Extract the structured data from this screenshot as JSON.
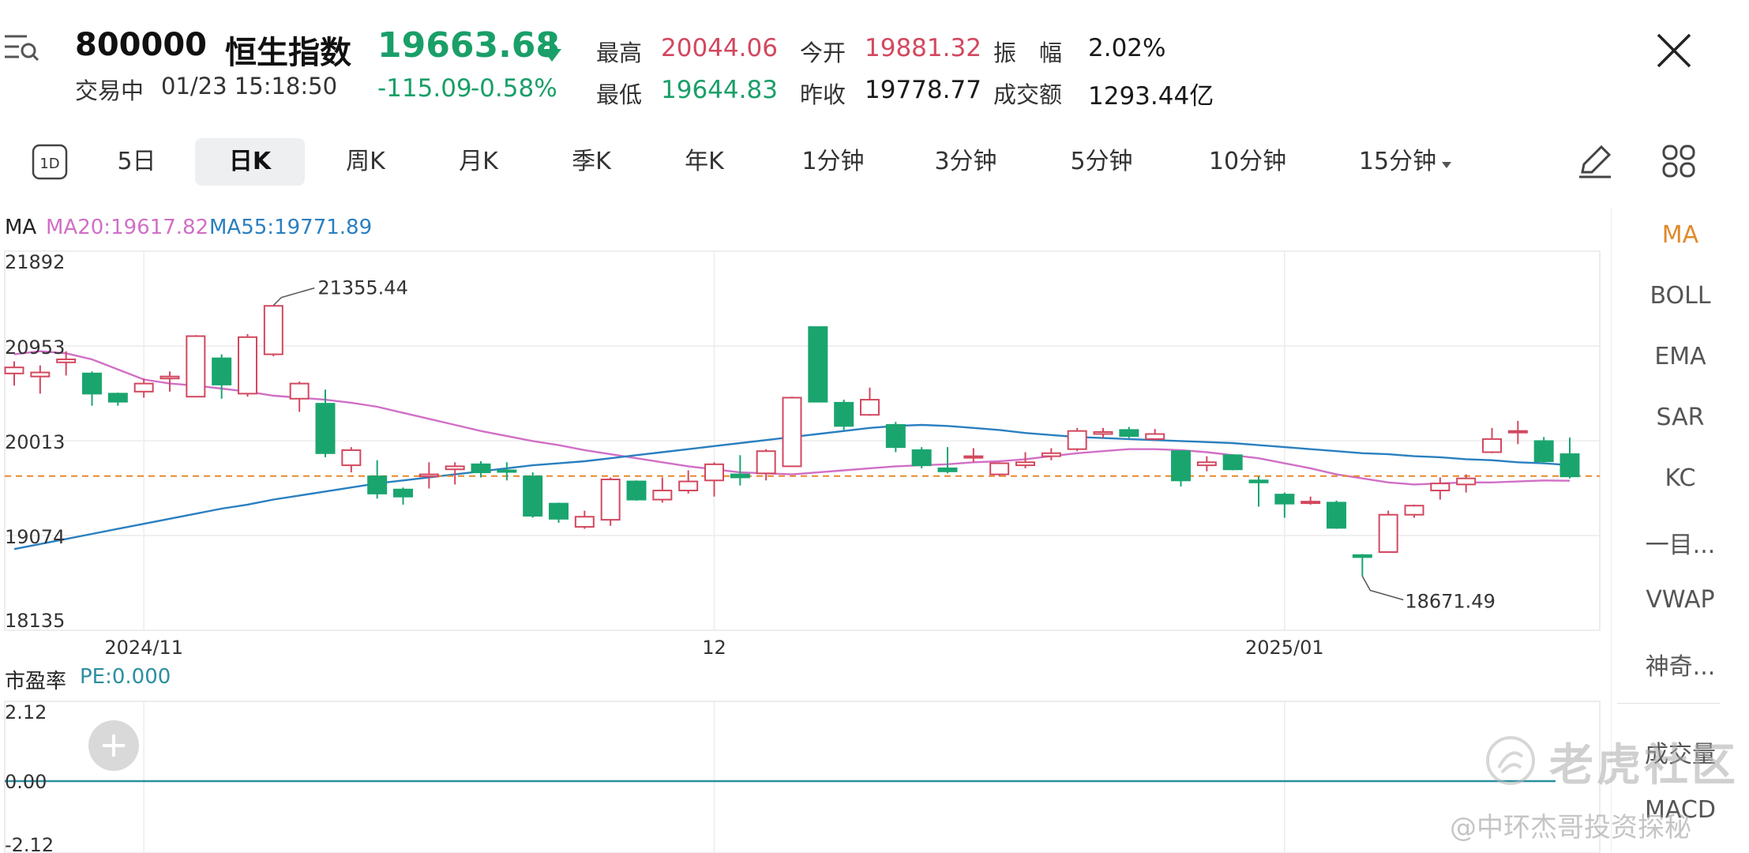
{
  "header": {
    "code": "800000",
    "name": "恒生指数",
    "price": "19663.68",
    "change": "-115.09",
    "change_pct": "-0.58%",
    "status": "交易中",
    "datetime": "01/23 15:18:50",
    "stats": [
      {
        "label": "最高",
        "value": "20044.06",
        "color": "#d2485f"
      },
      {
        "label": "今开",
        "value": "19881.32",
        "color": "#d2485f"
      },
      {
        "label": "振　幅",
        "value": "2.02%",
        "color": "#1a1a1a"
      },
      {
        "label": "最低",
        "value": "19644.83",
        "color": "#1a9f68"
      },
      {
        "label": "昨收",
        "value": "19778.77",
        "color": "#1a1a1a"
      },
      {
        "label": "成交额",
        "value": "1293.44亿",
        "color": "#1a1a1a"
      }
    ]
  },
  "toolbar": {
    "badge": "1D",
    "tabs": [
      "5日",
      "日K",
      "周K",
      "月K",
      "季K",
      "年K",
      "1分钟",
      "3分钟",
      "5分钟",
      "10分钟",
      "15分钟"
    ],
    "active_tab": "日K"
  },
  "right_panel": {
    "items": [
      "MA",
      "BOLL",
      "EMA",
      "SAR",
      "KC",
      "一目...",
      "VWAP",
      "神奇..."
    ],
    "lower_items": [
      "成交量",
      "MACD"
    ],
    "active": "MA"
  },
  "main_chart": {
    "ma_label": "MA",
    "ma20_label": "MA20:19617.82",
    "ma55_label": "MA55:19771.89",
    "ma20_color": "#d16fc6",
    "ma55_color": "#2a7fc0",
    "up_color": "#d2485f",
    "down_color": "#1aa56f",
    "y_ticks": [
      "21892",
      "20953",
      "20013",
      "19074",
      "18135"
    ],
    "x_ticks": [
      "2024/11",
      "12",
      "2025/01"
    ],
    "high_annotation": "21355.44",
    "low_annotation": "18671.49",
    "last_price_line": 19663.68
  },
  "chart_data": {
    "type": "candlestick",
    "ylim": [
      18135,
      21892
    ],
    "y_ticks": [
      21892,
      20953,
      20013,
      19074,
      18135
    ],
    "x_ticks": [
      "2024/11",
      "12",
      "2025/01"
    ],
    "candles": [
      [
        20680,
        20740,
        20560,
        20800
      ],
      [
        20650,
        20690,
        20480,
        20760
      ],
      [
        20790,
        20820,
        20660,
        20900
      ],
      [
        20680,
        20480,
        20360,
        20700
      ],
      [
        20480,
        20400,
        20360,
        20490
      ],
      [
        20500,
        20580,
        20440,
        20630
      ],
      [
        20630,
        20650,
        20500,
        20700
      ],
      [
        20450,
        21050,
        20450,
        21060
      ],
      [
        20830,
        20570,
        20430,
        20870
      ],
      [
        20480,
        21040,
        20450,
        21070
      ],
      [
        20870,
        21350,
        20850,
        21355
      ],
      [
        20430,
        20580,
        20300,
        20600
      ],
      [
        20380,
        19890,
        19850,
        20520
      ],
      [
        19770,
        19920,
        19700,
        19950
      ],
      [
        19660,
        19490,
        19440,
        19820
      ],
      [
        19530,
        19460,
        19380,
        19550
      ],
      [
        19660,
        19680,
        19540,
        19800
      ],
      [
        19730,
        19760,
        19580,
        19800
      ],
      [
        19780,
        19700,
        19650,
        19810
      ],
      [
        19720,
        19710,
        19620,
        19800
      ],
      [
        19660,
        19270,
        19250,
        19700
      ],
      [
        19390,
        19240,
        19200,
        19400
      ],
      [
        19160,
        19260,
        19140,
        19320
      ],
      [
        19230,
        19630,
        19170,
        19650
      ],
      [
        19610,
        19430,
        19420,
        19620
      ],
      [
        19430,
        19520,
        19400,
        19650
      ],
      [
        19520,
        19610,
        19490,
        19720
      ],
      [
        19620,
        19780,
        19460,
        19800
      ],
      [
        19680,
        19650,
        19570,
        19870
      ],
      [
        19690,
        19910,
        19620,
        19930
      ],
      [
        19760,
        20440,
        19760,
        20450
      ],
      [
        21140,
        20400,
        20400,
        21140
      ],
      [
        20390,
        20160,
        20120,
        20420
      ],
      [
        20270,
        20420,
        20260,
        20540
      ],
      [
        20170,
        19950,
        19900,
        20200
      ],
      [
        19920,
        19770,
        19740,
        19950
      ],
      [
        19740,
        19710,
        19690,
        19950
      ],
      [
        19850,
        19860,
        19800,
        19940
      ],
      [
        19680,
        19790,
        19660,
        19800
      ],
      [
        19770,
        19800,
        19740,
        19900
      ],
      [
        19860,
        19890,
        19820,
        19940
      ],
      [
        19930,
        20110,
        19910,
        20140
      ],
      [
        20080,
        20100,
        20040,
        20140
      ],
      [
        20120,
        20060,
        20040,
        20150
      ],
      [
        20030,
        20080,
        20010,
        20130
      ],
      [
        19910,
        19620,
        19560,
        19910
      ],
      [
        19770,
        19800,
        19710,
        19860
      ],
      [
        19870,
        19730,
        19720,
        19880
      ],
      [
        19620,
        19600,
        19360,
        19660
      ],
      [
        19480,
        19390,
        19250,
        19500
      ],
      [
        19400,
        19410,
        19380,
        19460
      ],
      [
        19400,
        19150,
        19140,
        19420
      ],
      [
        18880,
        18860,
        18671,
        18890
      ],
      [
        18910,
        19280,
        18910,
        19320
      ],
      [
        19280,
        19370,
        19250,
        19380
      ],
      [
        19520,
        19590,
        19430,
        19650
      ],
      [
        19580,
        19640,
        19500,
        19680
      ],
      [
        19900,
        20030,
        19890,
        20140
      ],
      [
        20100,
        20110,
        19980,
        20210
      ],
      [
        20010,
        19810,
        19780,
        20050
      ],
      [
        19880,
        19660,
        19640,
        20044
      ]
    ],
    "ma20": [
      20870,
      20900,
      20880,
      20820,
      20720,
      20620,
      20580,
      20560,
      20530,
      20500,
      20460,
      20440,
      20420,
      20390,
      20350,
      20290,
      20230,
      20170,
      20110,
      20060,
      20010,
      19970,
      19920,
      19880,
      19840,
      19800,
      19760,
      19730,
      19700,
      19690,
      19680,
      19700,
      19720,
      19740,
      19760,
      19770,
      19780,
      19800,
      19810,
      19830,
      19860,
      19890,
      19910,
      19930,
      19930,
      19920,
      19900,
      19870,
      19840,
      19790,
      19740,
      19680,
      19640,
      19600,
      19580,
      19590,
      19600,
      19600,
      19610,
      19620,
      19617
    ],
    "ma55": [
      18940,
      18990,
      19040,
      19090,
      19140,
      19190,
      19240,
      19290,
      19340,
      19380,
      19430,
      19470,
      19510,
      19550,
      19590,
      19620,
      19650,
      19680,
      19710,
      19740,
      19770,
      19790,
      19810,
      19840,
      19870,
      19900,
      19930,
      19960,
      19990,
      20020,
      20050,
      20080,
      20110,
      20140,
      20160,
      20170,
      20160,
      20140,
      20120,
      20090,
      20070,
      20050,
      20040,
      20030,
      20020,
      20010,
      20000,
      19990,
      19970,
      19950,
      19930,
      19910,
      19890,
      19880,
      19860,
      19850,
      19830,
      19820,
      19800,
      19790,
      19772
    ]
  },
  "pe_chart": {
    "title": "市盈率",
    "pe_label": "PE:0.000",
    "y_ticks": [
      "2.12",
      "0.00",
      "-2.12"
    ],
    "line_color": "#2b8fa0"
  },
  "watermark": {
    "brand": "老虎社区",
    "author": "@中环杰哥投资探秘"
  }
}
